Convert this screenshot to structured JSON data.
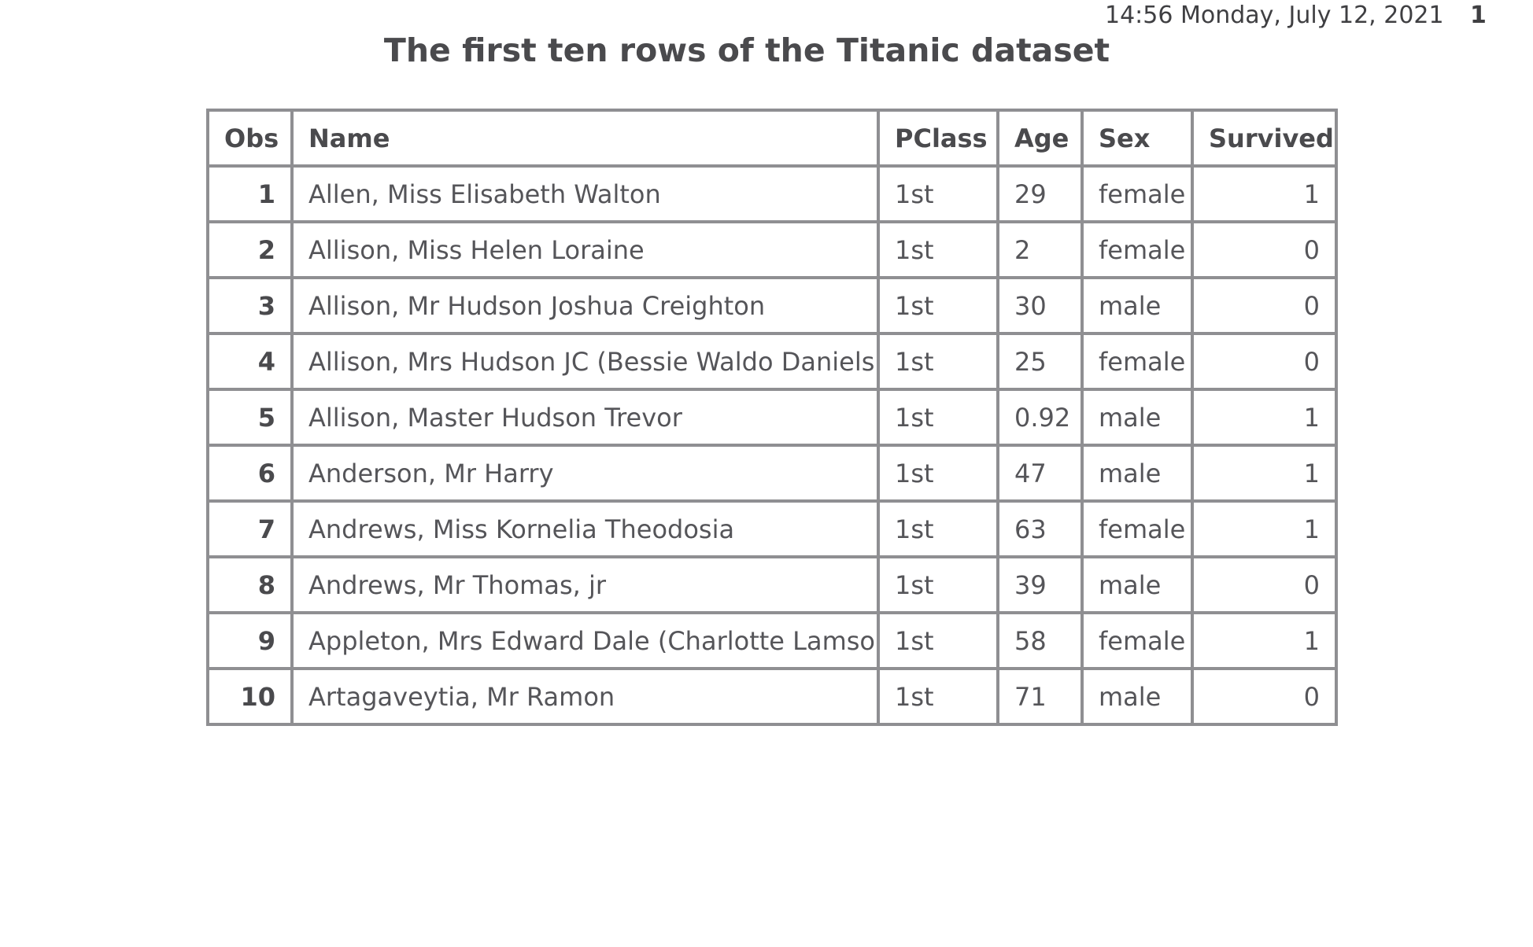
{
  "header": {
    "datetime": "14:56 Monday, July 12, 2021",
    "page_number": "1"
  },
  "title": "The first ten rows of the Titanic dataset",
  "table": {
    "columns": [
      "Obs",
      "Name",
      "PClass",
      "Age",
      "Sex",
      "Survived"
    ],
    "rows": [
      [
        "1",
        "Allen, Miss Elisabeth Walton",
        "1st",
        "29",
        "female",
        "1"
      ],
      [
        "2",
        "Allison, Miss Helen Loraine",
        "1st",
        "2",
        "female",
        "0"
      ],
      [
        "3",
        "Allison, Mr Hudson Joshua Creighton",
        "1st",
        "30",
        "male",
        "0"
      ],
      [
        "4",
        "Allison, Mrs Hudson JC (Bessie Waldo Daniels)",
        "1st",
        "25",
        "female",
        "0"
      ],
      [
        "5",
        "Allison, Master Hudson Trevor",
        "1st",
        "0.92",
        "male",
        "1"
      ],
      [
        "6",
        "Anderson, Mr Harry",
        "1st",
        "47",
        "male",
        "1"
      ],
      [
        "7",
        "Andrews, Miss Kornelia Theodosia",
        "1st",
        "63",
        "female",
        "1"
      ],
      [
        "8",
        "Andrews, Mr Thomas, jr",
        "1st",
        "39",
        "male",
        "0"
      ],
      [
        "9",
        "Appleton, Mrs Edward Dale (Charlotte Lamson)",
        "1st",
        "58",
        "female",
        "1"
      ],
      [
        "10",
        "Artagaveytia, Mr Ramon",
        "1st",
        "71",
        "male",
        "0"
      ]
    ]
  }
}
